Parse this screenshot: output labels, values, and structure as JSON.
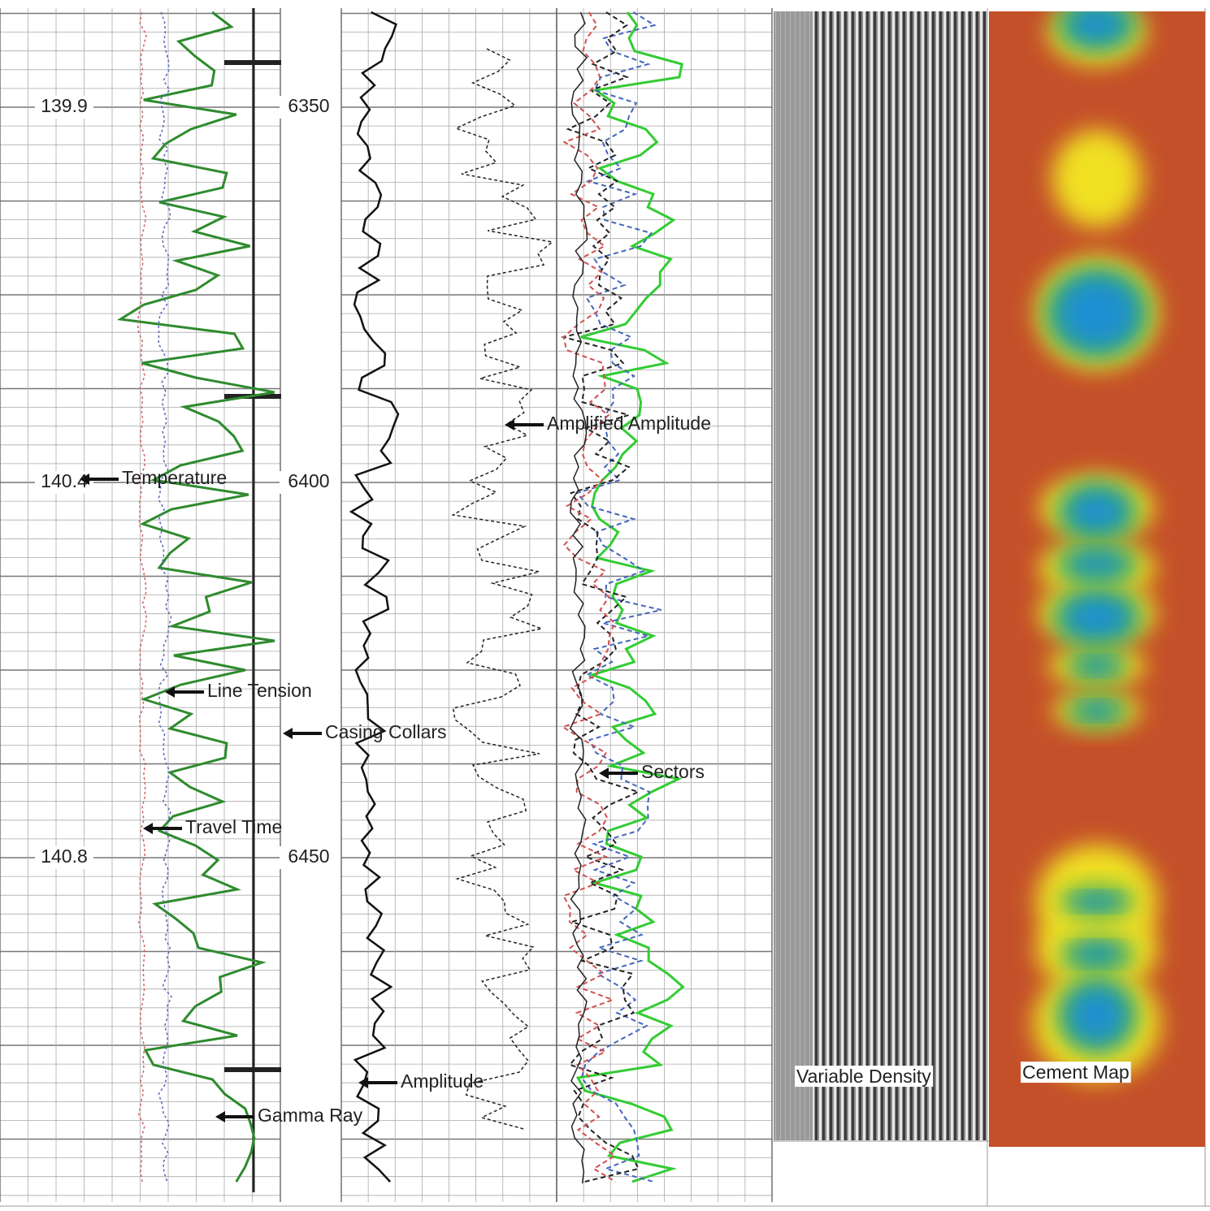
{
  "depth_track": {
    "time_labels": [
      "139.9",
      "140.4",
      "140.8"
    ],
    "depth_labels": [
      "6350",
      "6400",
      "6450"
    ]
  },
  "annotations": [
    "Temperature",
    "Line Tension",
    "Casing Collars",
    "Travel Time",
    "Gamma Ray",
    "Amplitude",
    "Amplified Amplitude",
    "Sectors"
  ],
  "images": [
    "Variable Density",
    "Cement Map"
  ]
}
